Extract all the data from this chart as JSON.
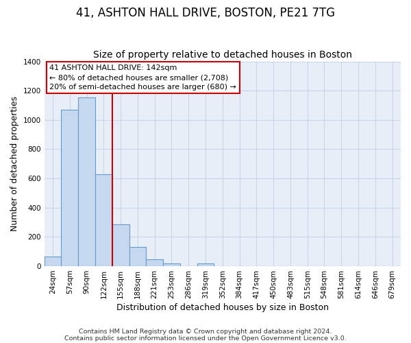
{
  "title_line1": "41, ASHTON HALL DRIVE, BOSTON, PE21 7TG",
  "title_line2": "Size of property relative to detached houses in Boston",
  "xlabel": "Distribution of detached houses by size in Boston",
  "ylabel": "Number of detached properties",
  "categories": [
    "24sqm",
    "57sqm",
    "90sqm",
    "122sqm",
    "155sqm",
    "188sqm",
    "221sqm",
    "253sqm",
    "286sqm",
    "319sqm",
    "352sqm",
    "384sqm",
    "417sqm",
    "450sqm",
    "483sqm",
    "515sqm",
    "548sqm",
    "581sqm",
    "614sqm",
    "646sqm",
    "679sqm"
  ],
  "bar_heights": [
    65,
    1070,
    1155,
    630,
    285,
    130,
    47,
    20,
    0,
    20,
    0,
    0,
    0,
    0,
    0,
    0,
    0,
    0,
    0,
    0,
    0
  ],
  "bar_color": "#c5d8ef",
  "bar_edge_color": "#6699cc",
  "vline_color": "#cc0000",
  "annotation_box_text": "41 ASHTON HALL DRIVE: 142sqm\n← 80% of detached houses are smaller (2,708)\n20% of semi-detached houses are larger (680) →",
  "ylim": [
    0,
    1400
  ],
  "yticks": [
    0,
    200,
    400,
    600,
    800,
    1000,
    1200,
    1400
  ],
  "footer_line1": "Contains HM Land Registry data © Crown copyright and database right 2024.",
  "footer_line2": "Contains public sector information licensed under the Open Government Licence v3.0.",
  "fig_bg_color": "#ffffff",
  "plot_bg_color": "#e8eef8",
  "grid_color": "#c8d4e8",
  "title_fontsize": 12,
  "subtitle_fontsize": 10,
  "axis_label_fontsize": 9,
  "tick_fontsize": 7.5,
  "footer_fontsize": 6.8,
  "annot_fontsize": 8.0
}
